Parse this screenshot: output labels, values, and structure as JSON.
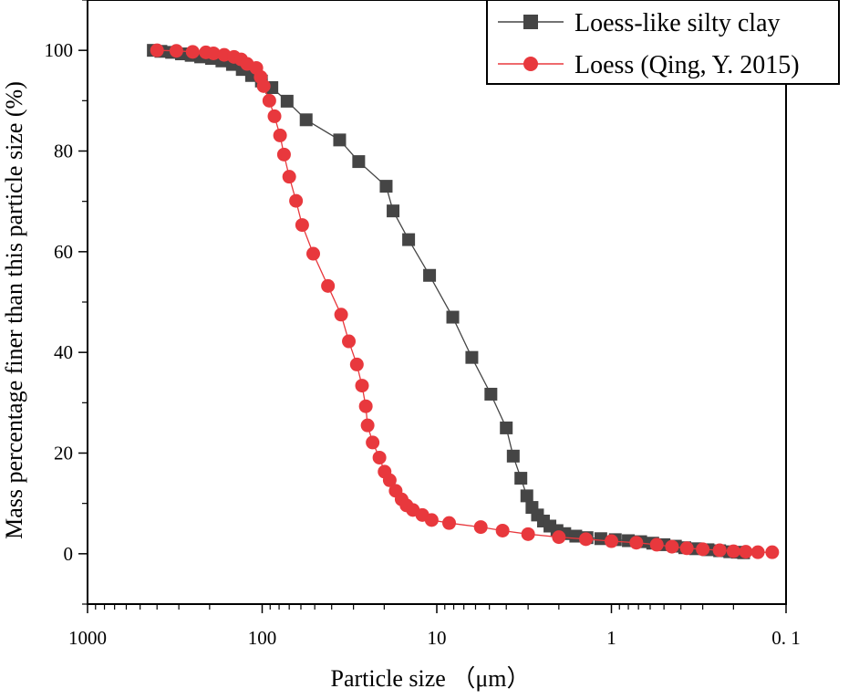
{
  "chart_data": {
    "type": "scatter",
    "xscale": "log",
    "x_reversed": true,
    "xlabel": "Particle size （μm）",
    "ylabel": "Mass percentage finer than this particle size (%)",
    "xlim": [
      1000,
      0.1
    ],
    "ylim": [
      -10,
      110
    ],
    "x_ticks": [
      1000,
      100,
      10,
      1,
      0.1
    ],
    "x_tick_labels": [
      "1000",
      "100",
      "10",
      "1",
      "0. 1"
    ],
    "y_ticks": [
      0,
      20,
      40,
      60,
      80,
      100
    ],
    "y_tick_labels": [
      "0",
      "20",
      "40",
      "60",
      "80",
      "100"
    ],
    "legend_position": "top-right",
    "series": [
      {
        "name": "Loess-like silty clay",
        "color": "#454545",
        "marker": "square",
        "points": [
          [
            420,
            100
          ],
          [
            380,
            99.8
          ],
          [
            330,
            99.6
          ],
          [
            290,
            99.3
          ],
          [
            255,
            99.0
          ],
          [
            225,
            98.7
          ],
          [
            195,
            98.4
          ],
          [
            170,
            97.9
          ],
          [
            148,
            97.2
          ],
          [
            130,
            96.2
          ],
          [
            115,
            95.0
          ],
          [
            101,
            93.9
          ],
          [
            88,
            92.6
          ],
          [
            72,
            89.9
          ],
          [
            56,
            86.2
          ],
          [
            36,
            82.2
          ],
          [
            28,
            77.9
          ],
          [
            19.5,
            73.0
          ],
          [
            17.8,
            68.1
          ],
          [
            14.5,
            62.4
          ],
          [
            11.0,
            55.3
          ],
          [
            8.1,
            47.0
          ],
          [
            6.3,
            39.0
          ],
          [
            4.9,
            31.7
          ],
          [
            4.0,
            25.0
          ],
          [
            3.65,
            19.4
          ],
          [
            3.3,
            15.0
          ],
          [
            3.05,
            11.5
          ],
          [
            2.85,
            9.2
          ],
          [
            2.65,
            7.7
          ],
          [
            2.45,
            6.5
          ],
          [
            2.25,
            5.5
          ],
          [
            2.05,
            4.6
          ],
          [
            1.85,
            4.0
          ],
          [
            1.6,
            3.5
          ],
          [
            1.38,
            3.2
          ],
          [
            1.15,
            3.0
          ],
          [
            0.95,
            2.8
          ],
          [
            0.8,
            2.6
          ],
          [
            0.68,
            2.4
          ],
          [
            0.58,
            2.1
          ],
          [
            0.5,
            1.8
          ],
          [
            0.43,
            1.5
          ],
          [
            0.38,
            1.2
          ],
          [
            0.33,
            1.0
          ],
          [
            0.28,
            0.8
          ],
          [
            0.24,
            0.6
          ],
          [
            0.21,
            0.4
          ],
          [
            0.19,
            0.3
          ],
          [
            0.175,
            0.2
          ]
        ]
      },
      {
        "name": "Loess (Qing, Y. 2015)",
        "color": "#E8383D",
        "marker": "circle",
        "points": [
          [
            400,
            100
          ],
          [
            310,
            99.9
          ],
          [
            250,
            99.7
          ],
          [
            210,
            99.6
          ],
          [
            190,
            99.4
          ],
          [
            165,
            99.1
          ],
          [
            145,
            98.7
          ],
          [
            132,
            98.2
          ],
          [
            122,
            97.3
          ],
          [
            108,
            96.5
          ],
          [
            102,
            94.7
          ],
          [
            98,
            92.9
          ],
          [
            91,
            90.0
          ],
          [
            85,
            86.9
          ],
          [
            79,
            83.1
          ],
          [
            75,
            79.3
          ],
          [
            70,
            74.9
          ],
          [
            64,
            70.1
          ],
          [
            59,
            65.3
          ],
          [
            51,
            59.6
          ],
          [
            42,
            53.2
          ],
          [
            35.3,
            47.5
          ],
          [
            31.9,
            42.2
          ],
          [
            28.7,
            37.6
          ],
          [
            26.8,
            33.4
          ],
          [
            25.5,
            29.3
          ],
          [
            24.9,
            25.5
          ],
          [
            23.3,
            22.1
          ],
          [
            21.3,
            19.1
          ],
          [
            19.9,
            16.3
          ],
          [
            18.6,
            14.6
          ],
          [
            17.2,
            12.5
          ],
          [
            15.9,
            10.8
          ],
          [
            14.9,
            9.6
          ],
          [
            13.7,
            8.7
          ],
          [
            12.1,
            7.7
          ],
          [
            10.7,
            6.7
          ],
          [
            8.5,
            6.1
          ],
          [
            5.6,
            5.3
          ],
          [
            4.2,
            4.6
          ],
          [
            3.0,
            3.9
          ],
          [
            2.0,
            3.3
          ],
          [
            1.4,
            2.9
          ],
          [
            1.0,
            2.5
          ],
          [
            0.72,
            2.2
          ],
          [
            0.55,
            1.8
          ],
          [
            0.45,
            1.4
          ],
          [
            0.37,
            1.1
          ],
          [
            0.3,
            0.9
          ],
          [
            0.24,
            0.7
          ],
          [
            0.2,
            0.5
          ],
          [
            0.17,
            0.4
          ],
          [
            0.145,
            0.3
          ],
          [
            0.12,
            0.3
          ]
        ]
      }
    ]
  }
}
